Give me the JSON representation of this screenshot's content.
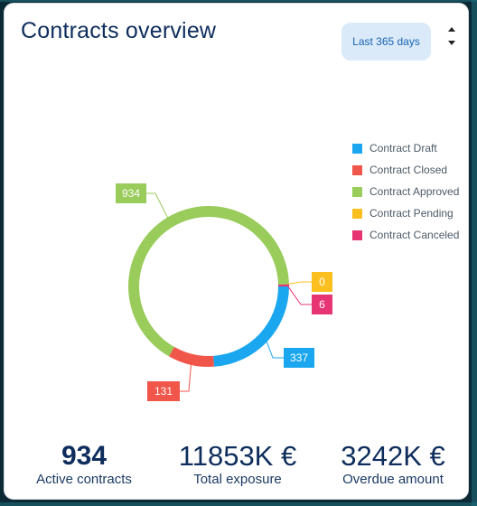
{
  "card": {
    "title": "Contracts overview",
    "range_button": "Last 365 days"
  },
  "colors": {
    "draft": "#1aa7f0",
    "closed": "#f0564a",
    "approved": "#99cc5a",
    "pending": "#fbbf1f",
    "canceled": "#e63572"
  },
  "chart_data": {
    "type": "pie",
    "title": "",
    "legend_position": "right",
    "slices": [
      {
        "name": "Contract Draft",
        "value": 337,
        "color": "#1aa7f0"
      },
      {
        "name": "Contract Closed",
        "value": 131,
        "color": "#f0564a"
      },
      {
        "name": "Contract Approved",
        "value": 934,
        "color": "#99cc5a"
      },
      {
        "name": "Contract Pending",
        "value": 0,
        "color": "#fbbf1f"
      },
      {
        "name": "Contract Canceled",
        "value": 6,
        "color": "#e63572"
      }
    ]
  },
  "stats": [
    {
      "value": "934",
      "label": "Active contracts"
    },
    {
      "value": "11853K €",
      "label": "Total exposure"
    },
    {
      "value": "3242K €",
      "label": "Overdue amount"
    }
  ]
}
